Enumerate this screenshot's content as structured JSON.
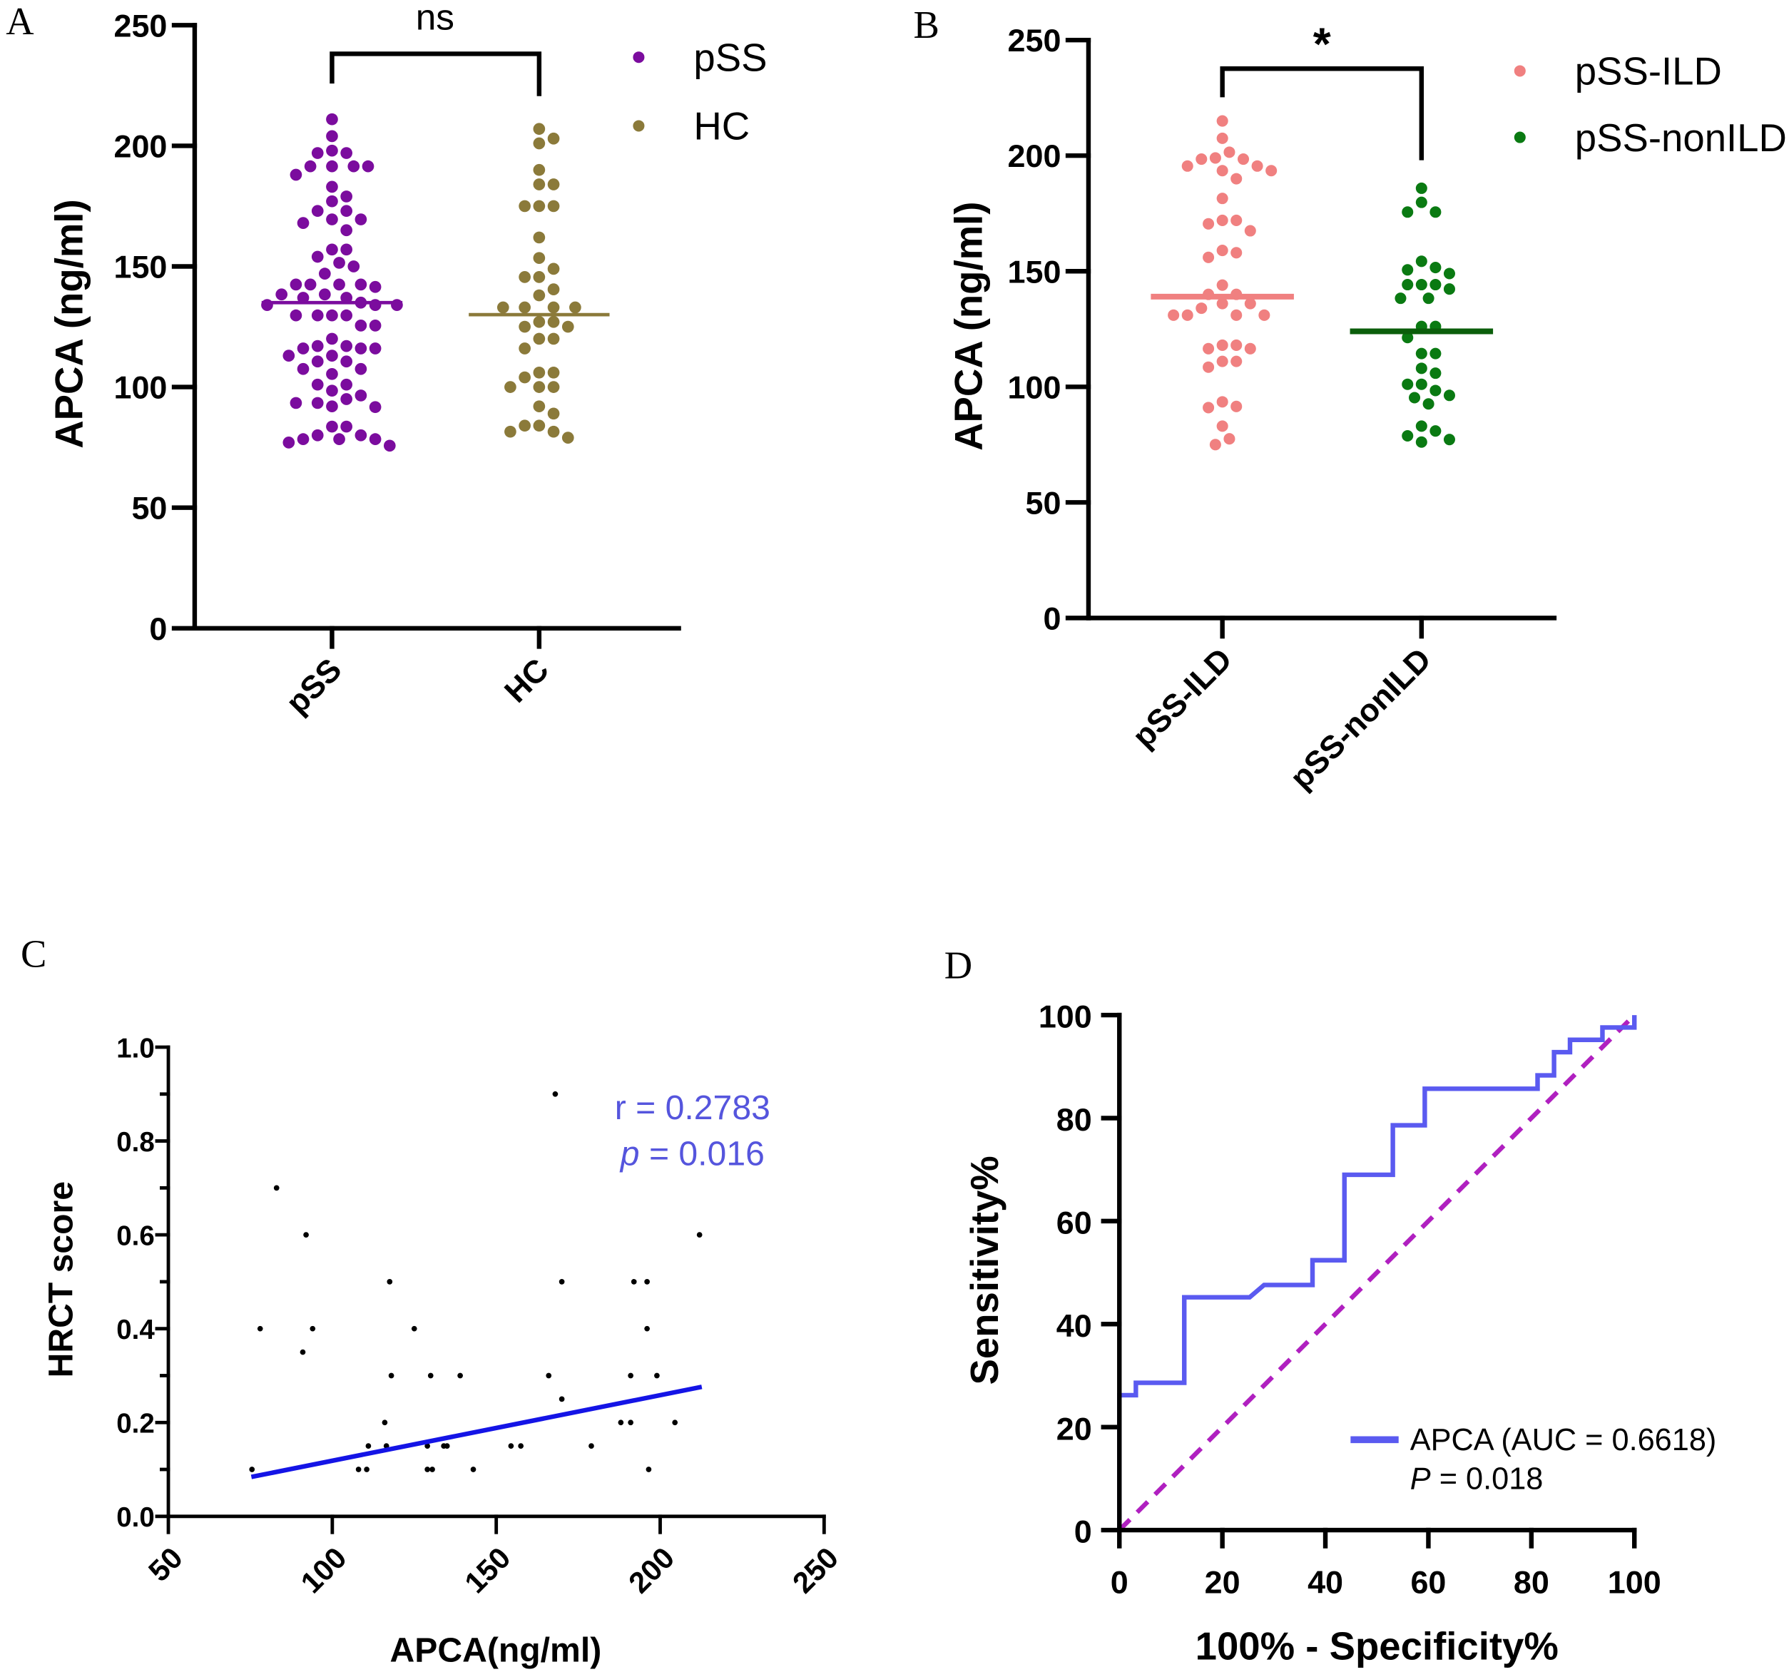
{
  "panels": {
    "a": {
      "letter": "A",
      "ylabel": "APCA (ng/ml)",
      "significance": "ns"
    },
    "b": {
      "letter": "B",
      "ylabel": "APCA (ng/ml)",
      "significance": "*"
    },
    "c": {
      "letter": "C",
      "ylabel": "HRCT score",
      "xlabel": "APCA(ng/ml)",
      "r_text": "r = 0.2783",
      "p_italic": "p",
      "p_rest": " = 0.016"
    },
    "d": {
      "letter": "D",
      "ylabel": "Sensitivity%",
      "xlabel": "100% - Specificity%",
      "legend_label": "APCA (AUC = 0.6618)",
      "p_italic": "P",
      "p_rest": " = 0.018"
    }
  },
  "chart_data": [
    {
      "type": "scatter",
      "panel": "A",
      "ylabel": "APCA (ng/ml)",
      "ylim": [
        0,
        250
      ],
      "yticks": [
        0,
        50,
        100,
        150,
        200,
        250
      ],
      "categories": [
        "pSS",
        "HC"
      ],
      "legend_position": "top-right",
      "annotation": "ns",
      "series": [
        {
          "name": "pSS",
          "color": "#7b0c9e",
          "mean": 135,
          "values": [
            211,
            204,
            198,
            197,
            197,
            191.5,
            191.5,
            191.5,
            191.5,
            188,
            183,
            179,
            177,
            173,
            173,
            169.5,
            169.5,
            168,
            165,
            157,
            157,
            154,
            151.5,
            150,
            147,
            142.5,
            142.5,
            142.5,
            142.5,
            141.5,
            138.4,
            138.4,
            137,
            137,
            135,
            134,
            134,
            134,
            129.7,
            129.7,
            129.7,
            129.7,
            125.5,
            125.5,
            120,
            117,
            117,
            116,
            116,
            116,
            113,
            113,
            110.6,
            110.6,
            107.5,
            107.5,
            105.4,
            101,
            101,
            98.5,
            96.5,
            95,
            93.4,
            93.4,
            92,
            91.7,
            83.6,
            83.6,
            80,
            80,
            78.4,
            78.4,
            78.4,
            77,
            75.7
          ]
        },
        {
          "name": "HC",
          "color": "#8b7a3a",
          "mean": 130,
          "values": [
            207,
            203,
            201,
            190,
            184,
            184,
            175,
            175,
            175,
            162,
            153.5,
            149,
            145.6,
            145.6,
            140.5,
            138,
            133,
            133,
            133,
            133,
            127,
            127,
            125,
            125,
            120,
            120,
            116,
            106,
            106,
            104,
            100,
            100,
            100,
            92,
            89,
            84,
            84,
            81.5,
            81.5,
            79
          ]
        }
      ]
    },
    {
      "type": "scatter",
      "panel": "B",
      "ylabel": "APCA (ng/ml)",
      "ylim": [
        0,
        250
      ],
      "yticks": [
        0,
        50,
        100,
        150,
        200,
        250
      ],
      "categories": [
        "pSS-ILD",
        "pSS-nonILD"
      ],
      "legend_position": "top-right",
      "annotation": "*",
      "series": [
        {
          "name": "pSS-ILD",
          "color": "#f08080",
          "mean": 139,
          "values": [
            215,
            207.5,
            201.5,
            199,
            198.5,
            198.5,
            195.5,
            195.5,
            193.5,
            193.5,
            190,
            181.5,
            172,
            172,
            170.5,
            167.5,
            159,
            158,
            156,
            144,
            140,
            140,
            136,
            136,
            134,
            131,
            131,
            131,
            131,
            118,
            118,
            116.5,
            116.5,
            111,
            111,
            108.5,
            93.5,
            91.5,
            91,
            83,
            77.5,
            75
          ]
        },
        {
          "name": "pSS-nonILD",
          "color": "#0a7a12",
          "mean": 124,
          "values": [
            185.9,
            179.8,
            175.6,
            175.6,
            154.3,
            151.6,
            150.6,
            149,
            144.2,
            144.2,
            144.2,
            142.3,
            138.3,
            138.3,
            126.1,
            126.1,
            121.3,
            114.4,
            114.4,
            108,
            105.9,
            101.1,
            101.1,
            98.4,
            96.3,
            95.3,
            92.6,
            83,
            80.9,
            78.8,
            77.2,
            76.1
          ]
        }
      ]
    },
    {
      "type": "scatter",
      "panel": "C",
      "xlabel": "APCA(ng/ml)",
      "ylabel": "HRCT score",
      "xlim": [
        50,
        250
      ],
      "ylim": [
        0,
        1.0
      ],
      "xticks": [
        50,
        100,
        150,
        200,
        250
      ],
      "yticks": [
        "0.0",
        "0.2",
        "0.4",
        "0.6",
        "0.8",
        "1.0"
      ],
      "annotation": [
        "r = 0.2783",
        "p = 0.016"
      ],
      "point_color": "#000000",
      "fit_color": "#1414e6",
      "points": [
        [
          168,
          0.9
        ],
        [
          83,
          0.7
        ],
        [
          92,
          0.6
        ],
        [
          212,
          0.6
        ],
        [
          117.5,
          0.5
        ],
        [
          170,
          0.5
        ],
        [
          192,
          0.5
        ],
        [
          196,
          0.5
        ],
        [
          78,
          0.4
        ],
        [
          94,
          0.4
        ],
        [
          125,
          0.4
        ],
        [
          196,
          0.4
        ],
        [
          91,
          0.35
        ],
        [
          118,
          0.3
        ],
        [
          130,
          0.3
        ],
        [
          139,
          0.3
        ],
        [
          166,
          0.3
        ],
        [
          191,
          0.3
        ],
        [
          199,
          0.3
        ],
        [
          170,
          0.25
        ],
        [
          116,
          0.2
        ],
        [
          188,
          0.2
        ],
        [
          191,
          0.2
        ],
        [
          204.5,
          0.2
        ],
        [
          111,
          0.15
        ],
        [
          116.5,
          0.15
        ],
        [
          129,
          0.15
        ],
        [
          134,
          0.15
        ],
        [
          135,
          0.15
        ],
        [
          154.5,
          0.15
        ],
        [
          157.5,
          0.15
        ],
        [
          179,
          0.15
        ],
        [
          75.5,
          0.1
        ],
        [
          108,
          0.1
        ],
        [
          110.5,
          0.1
        ],
        [
          129,
          0.1
        ],
        [
          130.5,
          0.1
        ],
        [
          143,
          0.1
        ],
        [
          196.5,
          0.1
        ]
      ],
      "fit_line": [
        [
          76,
          0.085
        ],
        [
          212,
          0.275
        ]
      ]
    },
    {
      "type": "line",
      "panel": "D",
      "xlabel": "100% - Specificity%",
      "ylabel": "Sensitivity%",
      "xlim": [
        0,
        100
      ],
      "ylim": [
        0,
        100
      ],
      "xticks": [
        0,
        20,
        40,
        60,
        80,
        100
      ],
      "yticks": [
        0,
        20,
        40,
        60,
        80,
        100
      ],
      "legend_position": "bottom-right",
      "series": [
        {
          "name": "APCA (AUC = 0.6618)",
          "color": "#5a5af0",
          "points": [
            [
              0,
              0
            ],
            [
              0,
              26.2
            ],
            [
              3.2,
              26.2
            ],
            [
              3.2,
              28.6
            ],
            [
              12.6,
              28.6
            ],
            [
              12.6,
              45.2
            ],
            [
              25.3,
              45.2
            ],
            [
              28.1,
              47.6
            ],
            [
              37.5,
              47.6
            ],
            [
              37.5,
              52.4
            ],
            [
              43.7,
              52.4
            ],
            [
              43.7,
              69
            ],
            [
              53.1,
              69
            ],
            [
              53.1,
              78.6
            ],
            [
              59.3,
              78.6
            ],
            [
              59.3,
              85.7
            ],
            [
              81.2,
              85.7
            ],
            [
              81.2,
              88.3
            ],
            [
              84.4,
              88.3
            ],
            [
              84.4,
              92.8
            ],
            [
              87.5,
              92.8
            ],
            [
              87.5,
              95.2
            ],
            [
              93.8,
              95.2
            ],
            [
              93.8,
              97.6
            ],
            [
              100,
              97.6
            ],
            [
              100,
              100
            ]
          ]
        },
        {
          "reference": "diagonal",
          "color": "#b020c0",
          "points": [
            [
              0,
              0
            ],
            [
              100,
              100
            ]
          ]
        }
      ],
      "annotation": "P = 0.018"
    }
  ]
}
